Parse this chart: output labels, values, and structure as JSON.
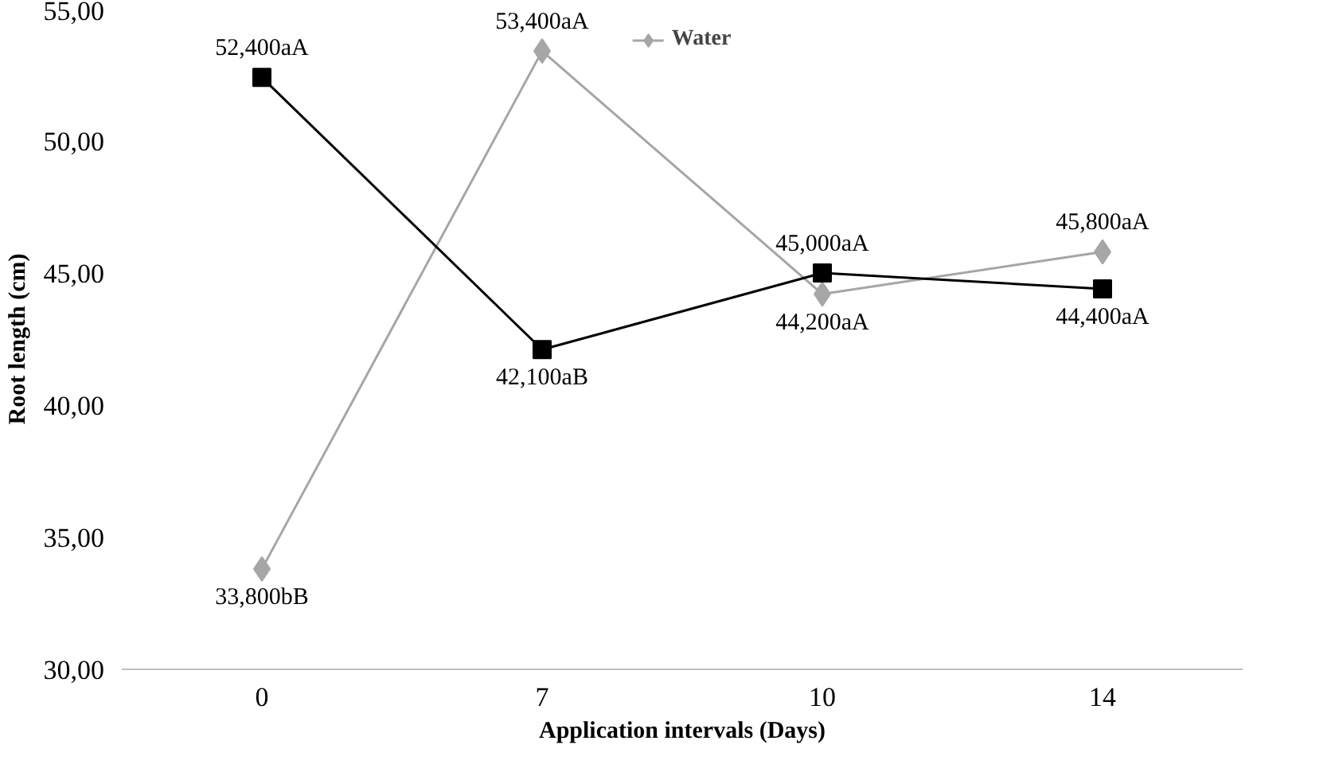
{
  "chart_data": {
    "type": "line",
    "xlabel": "Application intervals (Days)",
    "ylabel": "Root length (cm)",
    "categories": [
      "0",
      "7",
      "10",
      "14"
    ],
    "ylim": [
      30,
      55
    ],
    "yticks": [
      {
        "value": 30,
        "label": "30,00"
      },
      {
        "value": 35,
        "label": "35,00"
      },
      {
        "value": 40,
        "label": "40,00"
      },
      {
        "value": 45,
        "label": "45,00"
      },
      {
        "value": 50,
        "label": "50,00"
      },
      {
        "value": 55,
        "label": "55,00"
      }
    ],
    "legend": "top",
    "grid": false,
    "series": [
      {
        "name": "Water",
        "color": "#a6a6a6",
        "marker": "diamond",
        "values": [
          33.8,
          53.4,
          44.2,
          45.8
        ]
      },
      {
        "color": "#000000",
        "marker": "square",
        "values": [
          52.4,
          42.1,
          45.0,
          44.4
        ]
      }
    ],
    "annotations": [
      {
        "text": "33,800bB",
        "x": "0",
        "y": 33.8
      },
      {
        "text": "53,400aA",
        "x": "7",
        "y": 53.4
      },
      {
        "text": "44,200aA",
        "x": "10",
        "y": 44.2
      },
      {
        "text": "45,800aA",
        "x": "14",
        "y": 45.8
      },
      {
        "text": "52,400aA",
        "x": "0",
        "y": 52.4
      },
      {
        "text": "42,100aB",
        "x": "7",
        "y": 42.1
      },
      {
        "text": "45,000aA",
        "x": "10",
        "y": 45.0
      },
      {
        "text": "44,400aA",
        "x": "14",
        "y": 44.4
      }
    ]
  }
}
